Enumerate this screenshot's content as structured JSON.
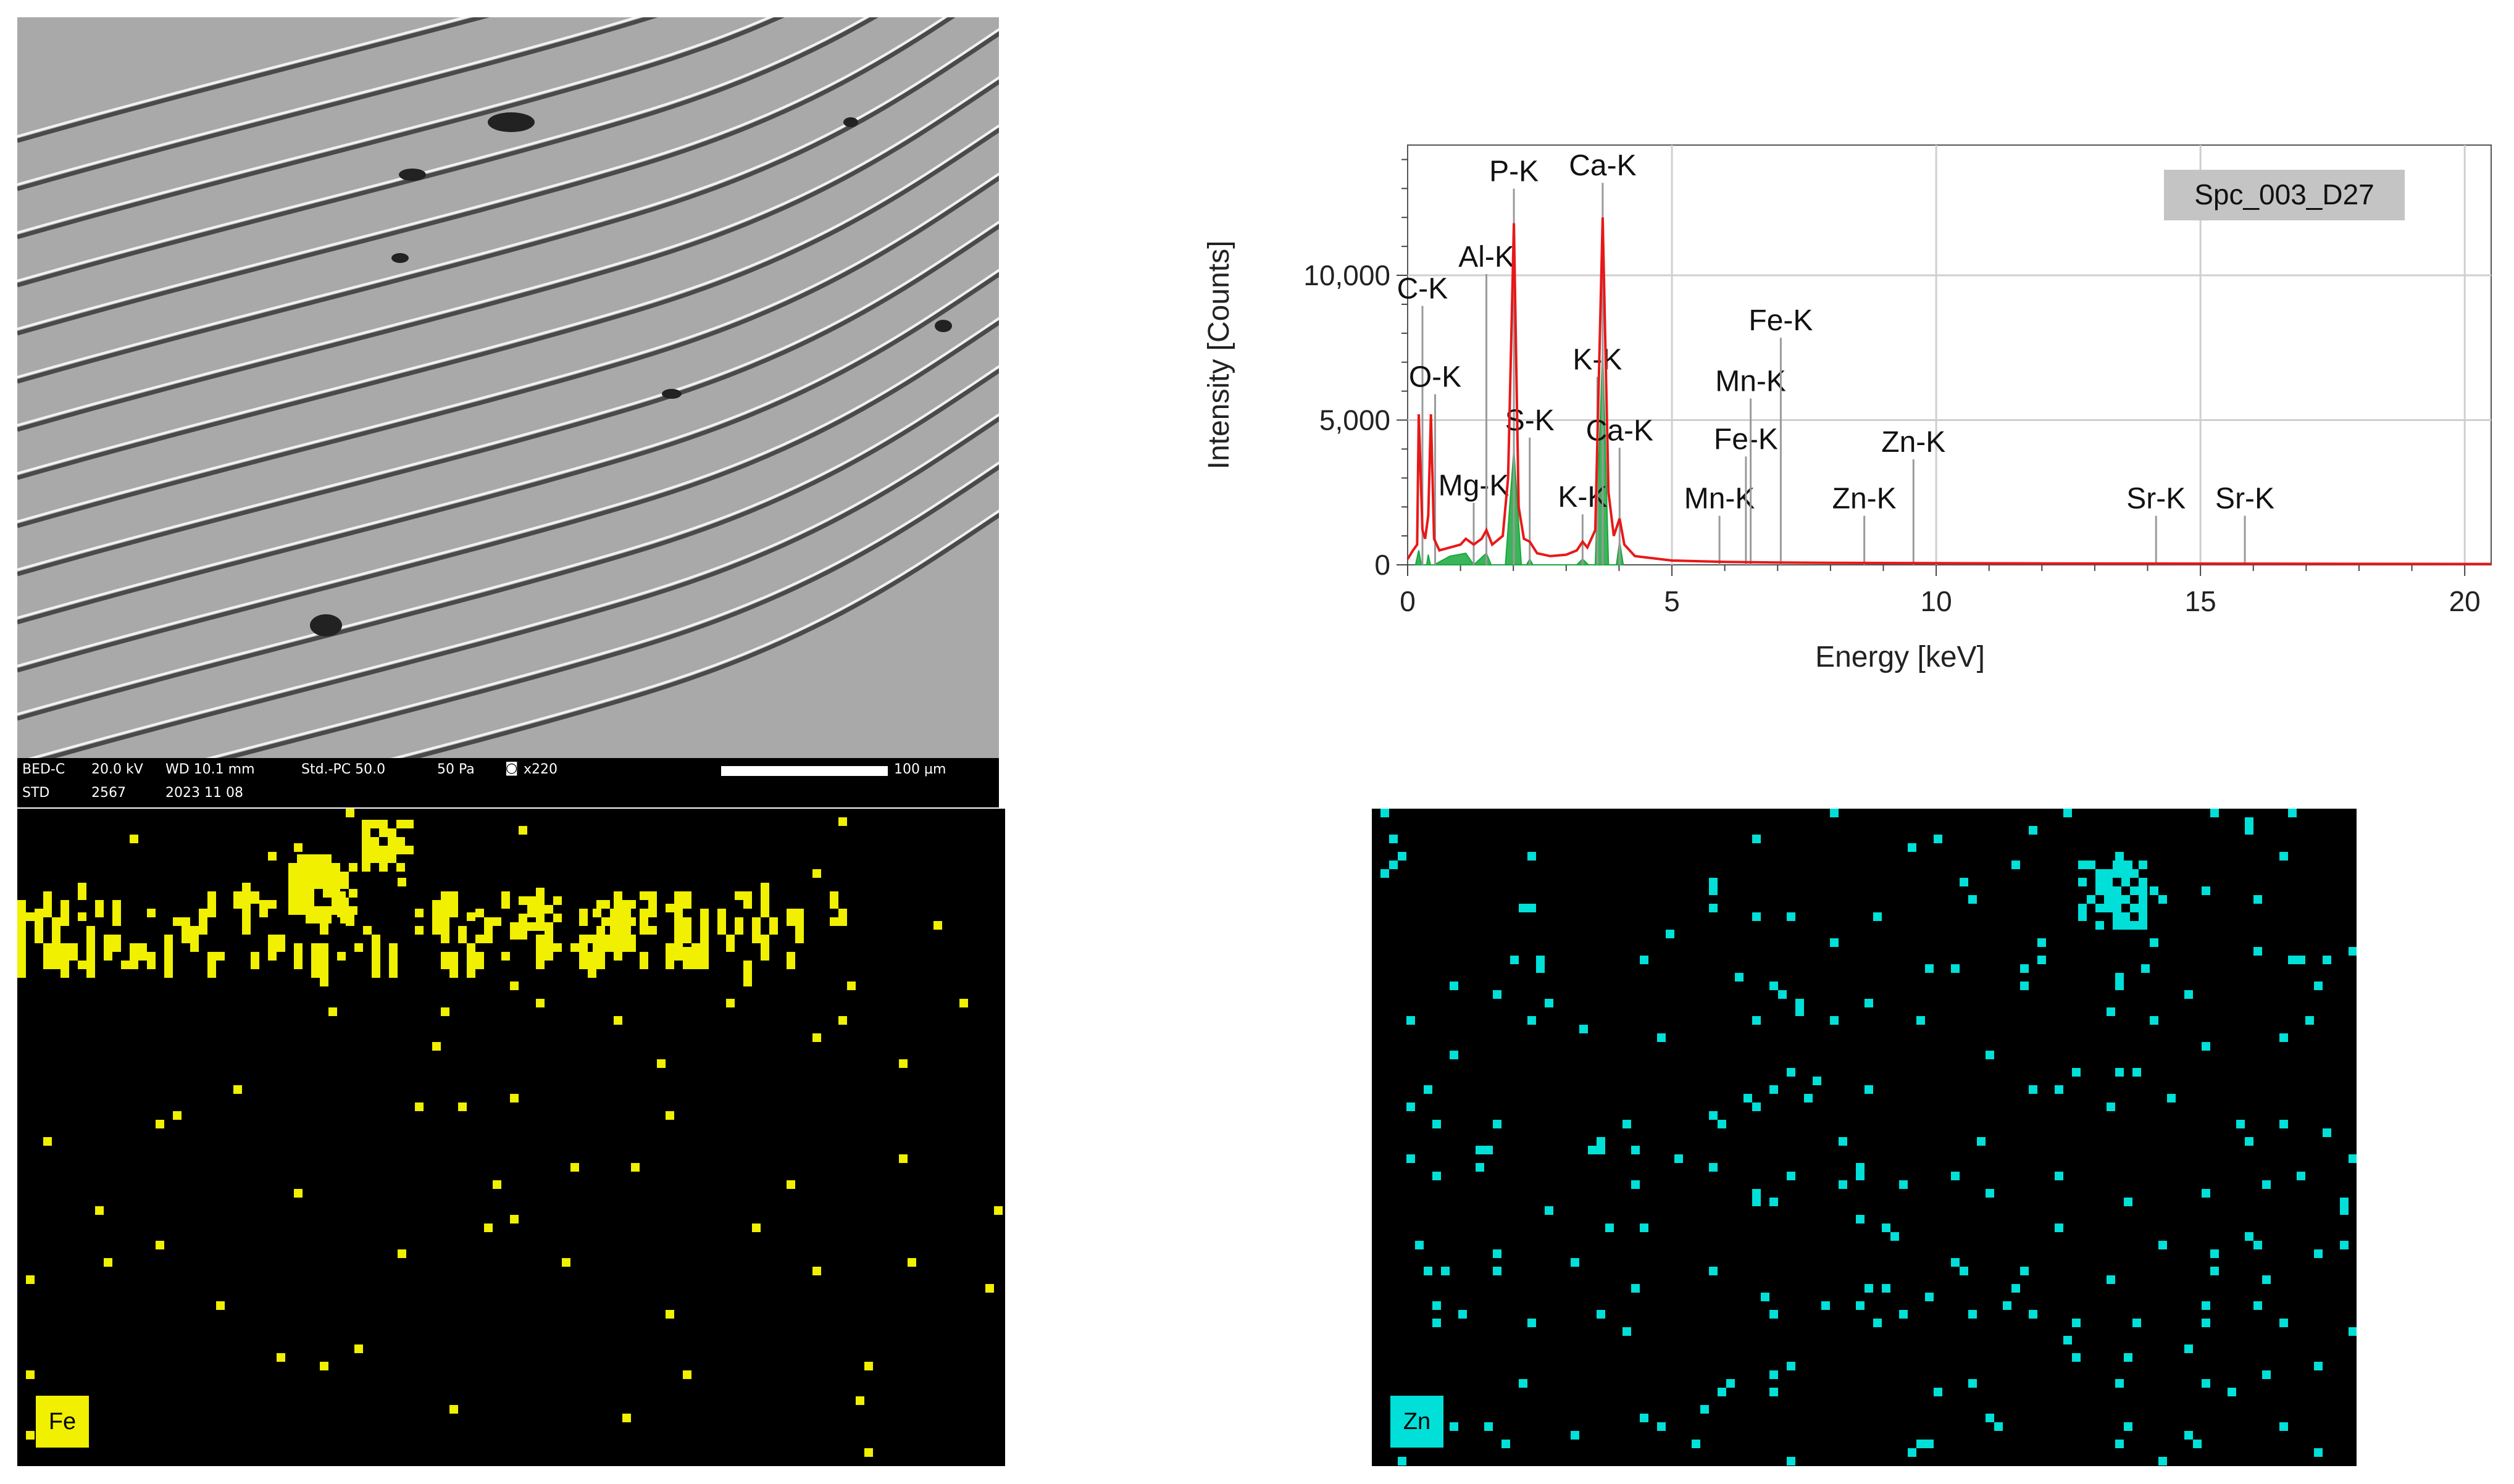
{
  "sem": {
    "mode": "BED-C",
    "voltage": "20.0 kV",
    "wd": "WD 10.1 mm",
    "std_pc": "Std.-PC 50.0",
    "pressure": "50 Pa",
    "magnification": "x220",
    "scale_label": "100 µm",
    "row2_label": "STD",
    "id": "2567",
    "date": "2023 11 08"
  },
  "chart_data": {
    "type": "line",
    "title": "",
    "xlabel": "Energy [keV]",
    "ylabel": "Intensity [Counts]",
    "xlim": [
      0,
      20.5
    ],
    "ylim": [
      0,
      14500
    ],
    "x_ticks": [
      0,
      5,
      10,
      15,
      20
    ],
    "y_ticks": [
      0,
      5000,
      10000
    ],
    "y_tick_labels": [
      "0",
      "5,000",
      "10,000"
    ],
    "grid": true,
    "legend_box": "Spc_003_D27",
    "series": [
      {
        "color": "#e81818",
        "x": [
          0,
          0.1,
          0.18,
          0.21,
          0.28,
          0.33,
          0.39,
          0.44,
          0.5,
          0.6,
          0.8,
          1.0,
          1.1,
          1.25,
          1.4,
          1.49,
          1.6,
          1.8,
          1.9,
          2.01,
          2.1,
          2.2,
          2.31,
          2.45,
          2.7,
          3.0,
          3.2,
          3.31,
          3.4,
          3.55,
          3.69,
          3.8,
          3.9,
          4.01,
          4.1,
          4.3,
          5.0,
          6.0,
          7.0,
          8.0,
          10.0,
          12.0,
          14.0,
          16.0,
          18.0,
          20.0,
          20.5
        ],
        "y": [
          200,
          500,
          700,
          5200,
          1200,
          900,
          1700,
          5200,
          900,
          500,
          600,
          700,
          900,
          700,
          900,
          1200,
          700,
          1000,
          3000,
          11800,
          2000,
          900,
          800,
          400,
          300,
          350,
          500,
          800,
          600,
          1200,
          12000,
          2500,
          1000,
          1600,
          700,
          300,
          150,
          100,
          80,
          70,
          60,
          50,
          45,
          40,
          35,
          30,
          30
        ]
      },
      {
        "color": "#18a83c",
        "x": [
          0.15,
          0.21,
          0.26,
          0.36,
          0.39,
          0.43,
          0.5,
          0.8,
          1.1,
          1.25,
          1.4,
          1.49,
          1.58,
          1.85,
          2.01,
          2.15,
          2.25,
          2.31,
          2.37,
          3.2,
          3.31,
          3.42,
          3.55,
          3.69,
          3.8,
          3.95,
          4.01,
          4.08
        ],
        "y": [
          0,
          500,
          0,
          0,
          350,
          0,
          0,
          300,
          400,
          0,
          250,
          400,
          0,
          0,
          4000,
          0,
          0,
          200,
          0,
          0,
          200,
          0,
          0,
          7500,
          0,
          0,
          800,
          0
        ]
      }
    ],
    "annotations": [
      {
        "text": "C-K",
        "x": 0.28,
        "y": 9200
      },
      {
        "text": "O-K",
        "x": 0.52,
        "y": 6150
      },
      {
        "text": "Mg-K",
        "x": 1.25,
        "y": 2400
      },
      {
        "text": "Al-K",
        "x": 1.49,
        "y": 10300
      },
      {
        "text": "P-K",
        "x": 2.01,
        "y": 13250
      },
      {
        "text": "S-K",
        "x": 2.31,
        "y": 4650
      },
      {
        "text": "K-K",
        "x": 3.31,
        "y": 2000
      },
      {
        "text": "Ca-K",
        "x": 3.69,
        "y": 13450
      },
      {
        "text": "K-K",
        "x": 3.59,
        "y": 6750
      },
      {
        "text": "Ca-K",
        "x": 4.01,
        "y": 4300
      },
      {
        "text": "Mn-K",
        "x": 5.9,
        "y": 1950
      },
      {
        "text": "Zn-K",
        "x": 8.64,
        "y": 1950
      },
      {
        "text": "Fe-K",
        "x": 6.4,
        "y": 4000
      },
      {
        "text": "Mn-K",
        "x": 6.49,
        "y": 6000
      },
      {
        "text": "Fe-K",
        "x": 7.06,
        "y": 8100
      },
      {
        "text": "Zn-K",
        "x": 9.57,
        "y": 3900
      },
      {
        "text": "Sr-K",
        "x": 14.16,
        "y": 1950
      },
      {
        "text": "Sr-K",
        "x": 15.84,
        "y": 1950
      }
    ]
  },
  "maps": [
    {
      "element": "Fe",
      "color": "#f0f000"
    },
    {
      "element": "Zn",
      "color": "#00e0d8"
    }
  ]
}
